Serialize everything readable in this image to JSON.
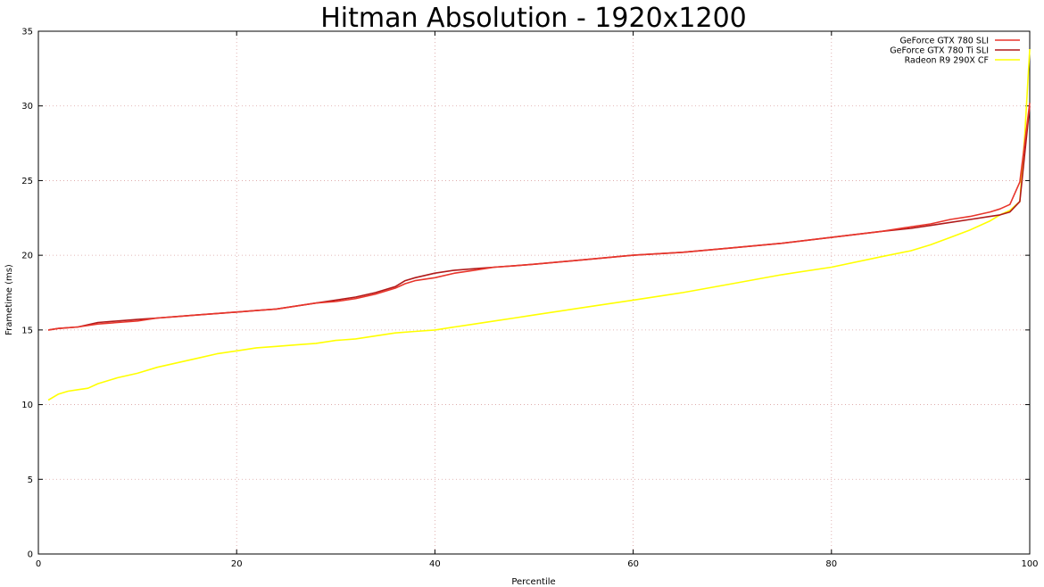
{
  "chart_data": {
    "type": "line",
    "title": "Hitman Absolution - 1920x1200",
    "xlabel": "Percentile",
    "ylabel": "Frametime (ms)",
    "xlim": [
      0,
      100
    ],
    "ylim": [
      0,
      35
    ],
    "xticks": [
      "0",
      "20",
      "40",
      "60",
      "80",
      "100"
    ],
    "yticks": [
      "0",
      "5",
      "10",
      "15",
      "20",
      "25",
      "30",
      "35"
    ],
    "grid": true,
    "legend_position": "top-right",
    "series": [
      {
        "name": "GeForce GTX 780 SLI",
        "color": "#e8352b",
        "x": [
          1,
          2,
          4,
          6,
          8,
          10,
          12,
          14,
          16,
          18,
          20,
          22,
          24,
          26,
          28,
          30,
          32,
          34,
          36,
          37,
          38,
          40,
          42,
          44,
          46,
          48,
          50,
          55,
          60,
          65,
          70,
          75,
          80,
          85,
          88,
          90,
          92,
          94,
          96,
          97,
          98,
          99,
          100
        ],
        "values": [
          15.0,
          15.1,
          15.2,
          15.4,
          15.5,
          15.6,
          15.8,
          15.9,
          16.0,
          16.1,
          16.2,
          16.3,
          16.4,
          16.6,
          16.8,
          16.9,
          17.1,
          17.4,
          17.8,
          18.1,
          18.3,
          18.5,
          18.8,
          19.0,
          19.2,
          19.3,
          19.4,
          19.7,
          20.0,
          20.2,
          20.5,
          20.8,
          21.2,
          21.6,
          21.9,
          22.1,
          22.4,
          22.6,
          22.9,
          23.1,
          23.4,
          24.9,
          30.2
        ]
      },
      {
        "name": "GeForce GTX 780 Ti SLI",
        "color": "#b01a1a",
        "x": [
          1,
          2,
          4,
          6,
          8,
          10,
          12,
          14,
          16,
          18,
          20,
          22,
          24,
          26,
          28,
          30,
          32,
          34,
          36,
          37,
          38,
          40,
          42,
          44,
          46,
          48,
          50,
          55,
          60,
          65,
          70,
          75,
          80,
          85,
          88,
          90,
          92,
          94,
          96,
          97,
          98,
          99,
          100
        ],
        "values": [
          15.0,
          15.1,
          15.2,
          15.5,
          15.6,
          15.7,
          15.8,
          15.9,
          16.0,
          16.1,
          16.2,
          16.3,
          16.4,
          16.6,
          16.8,
          17.0,
          17.2,
          17.5,
          17.9,
          18.3,
          18.5,
          18.8,
          19.0,
          19.1,
          19.2,
          19.3,
          19.4,
          19.7,
          20.0,
          20.2,
          20.5,
          20.8,
          21.2,
          21.6,
          21.8,
          22.0,
          22.2,
          22.4,
          22.6,
          22.7,
          22.9,
          23.6,
          30.0
        ]
      },
      {
        "name": "Radeon R9 290X CF",
        "color": "#ffff00",
        "x": [
          1,
          2,
          3,
          4,
          5,
          6,
          8,
          10,
          12,
          14,
          16,
          18,
          20,
          22,
          24,
          26,
          28,
          30,
          32,
          34,
          36,
          38,
          40,
          42,
          44,
          46,
          48,
          50,
          55,
          60,
          65,
          70,
          75,
          80,
          85,
          88,
          90,
          92,
          94,
          96,
          97,
          98,
          99,
          99.5,
          100
        ],
        "values": [
          10.3,
          10.7,
          10.9,
          11.0,
          11.1,
          11.4,
          11.8,
          12.1,
          12.5,
          12.8,
          13.1,
          13.4,
          13.6,
          13.8,
          13.9,
          14.0,
          14.1,
          14.3,
          14.4,
          14.6,
          14.8,
          14.9,
          15.0,
          15.2,
          15.4,
          15.6,
          15.8,
          16.0,
          16.5,
          17.0,
          17.5,
          18.1,
          18.7,
          19.2,
          19.9,
          20.3,
          20.7,
          21.2,
          21.7,
          22.3,
          22.7,
          23.0,
          23.6,
          28.0,
          33.8
        ]
      }
    ]
  }
}
